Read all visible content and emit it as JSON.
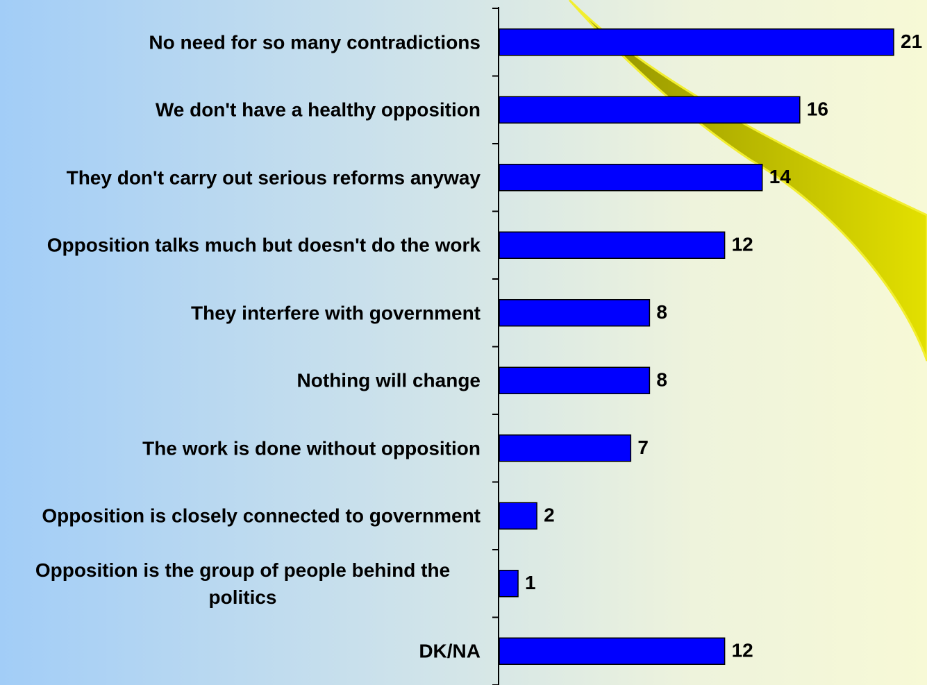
{
  "chart_data": {
    "type": "bar",
    "orientation": "horizontal",
    "categories": [
      "No need for so many contradictions",
      "We don't have a healthy opposition",
      "They don't carry out serious reforms anyway",
      "Opposition talks much but doesn't do the work",
      "They interfere with government",
      "Nothing will change",
      "The work is done without opposition",
      "Opposition is closely connected to government",
      "Opposition is the group of people behind the politics",
      "DK/NA"
    ],
    "values": [
      21,
      16,
      14,
      12,
      8,
      8,
      7,
      2,
      1,
      12
    ],
    "color": "#0000ff"
  }
}
